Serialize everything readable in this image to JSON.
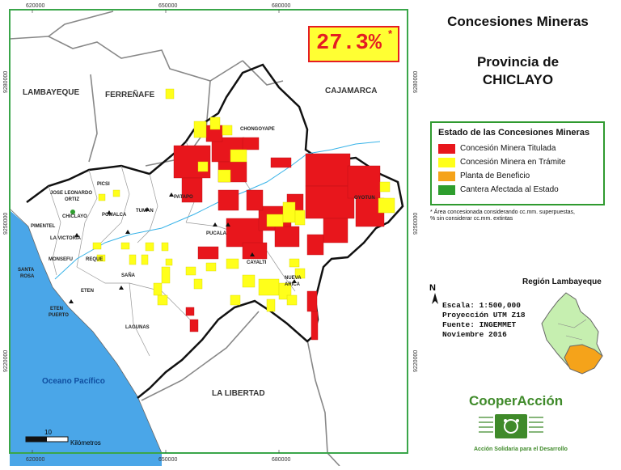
{
  "title": "Concesiones Mineras",
  "subtitle_line1": "Provincia de",
  "subtitle_line2": "CHICLAYO",
  "percentage": "27.3%",
  "percentage_mark": "*",
  "legend": {
    "title": "Estado de las Concesiones Mineras",
    "items": [
      {
        "label": "Concesión Minera Titulada",
        "color": "#e8161c"
      },
      {
        "label": "Concesión Minera en Trámite",
        "color": "#ffff1a"
      },
      {
        "label": "Planta de Beneficio",
        "color": "#f5a31a"
      },
      {
        "label": "Cantera Afectada al Estado",
        "color": "#2e9e2e"
      }
    ]
  },
  "footnote_line1": "* Área concesionada considerando cc.mm. superpuestas,",
  "footnote_line2": "% sin considerar cc.mm. extintas",
  "north": "N",
  "map_info": {
    "scale": "Escala: 1:500,000",
    "projection": "Proyección UTM Z18",
    "source": "Fuente: INGEMMET",
    "date": "Noviembre 2016"
  },
  "inset_title": "Región Lambayeque",
  "scalebar": {
    "value": "10",
    "unit": "Kilómetros"
  },
  "logo": {
    "name": "CooperAcción",
    "tagline": "Acción Solidaria para el Desarrollo"
  },
  "grid_labels": {
    "x": [
      "620000",
      "650000",
      "680000"
    ],
    "y": [
      "9280000",
      "9250000",
      "9220000"
    ]
  },
  "regions": [
    "LAMBAYEQUE",
    "FERREÑAFE",
    "CAJAMARCA",
    "LA LIBERTAD"
  ],
  "sea_label": "Oceano Pacífico",
  "districts": [
    "CHONGOYAPE",
    "OYOTUN",
    "PATAPO",
    "PICSI",
    "TUMAN",
    "POMALCA",
    "JOSE LEONARDO",
    "ORTIZ",
    "CHICLAYO",
    "PIMENTEL",
    "LA VICTORIA",
    "MONSEFU",
    "REQUE",
    "SANTA",
    "ROSA",
    "ETEN",
    "PUERTO",
    "SAÑA",
    "LAGUNAS",
    "PUCALA",
    "CAYALTI",
    "NUEVA",
    "ARICA"
  ],
  "colors": {
    "map_frame": "#3aa64a",
    "sea": "#4aa6e8",
    "river": "#38b3e8",
    "province_outline": "#111111",
    "red": "#e8161c",
    "yellow": "#ffff1a",
    "inset_green": "#c6efb0",
    "inset_orange": "#f5a31a"
  }
}
